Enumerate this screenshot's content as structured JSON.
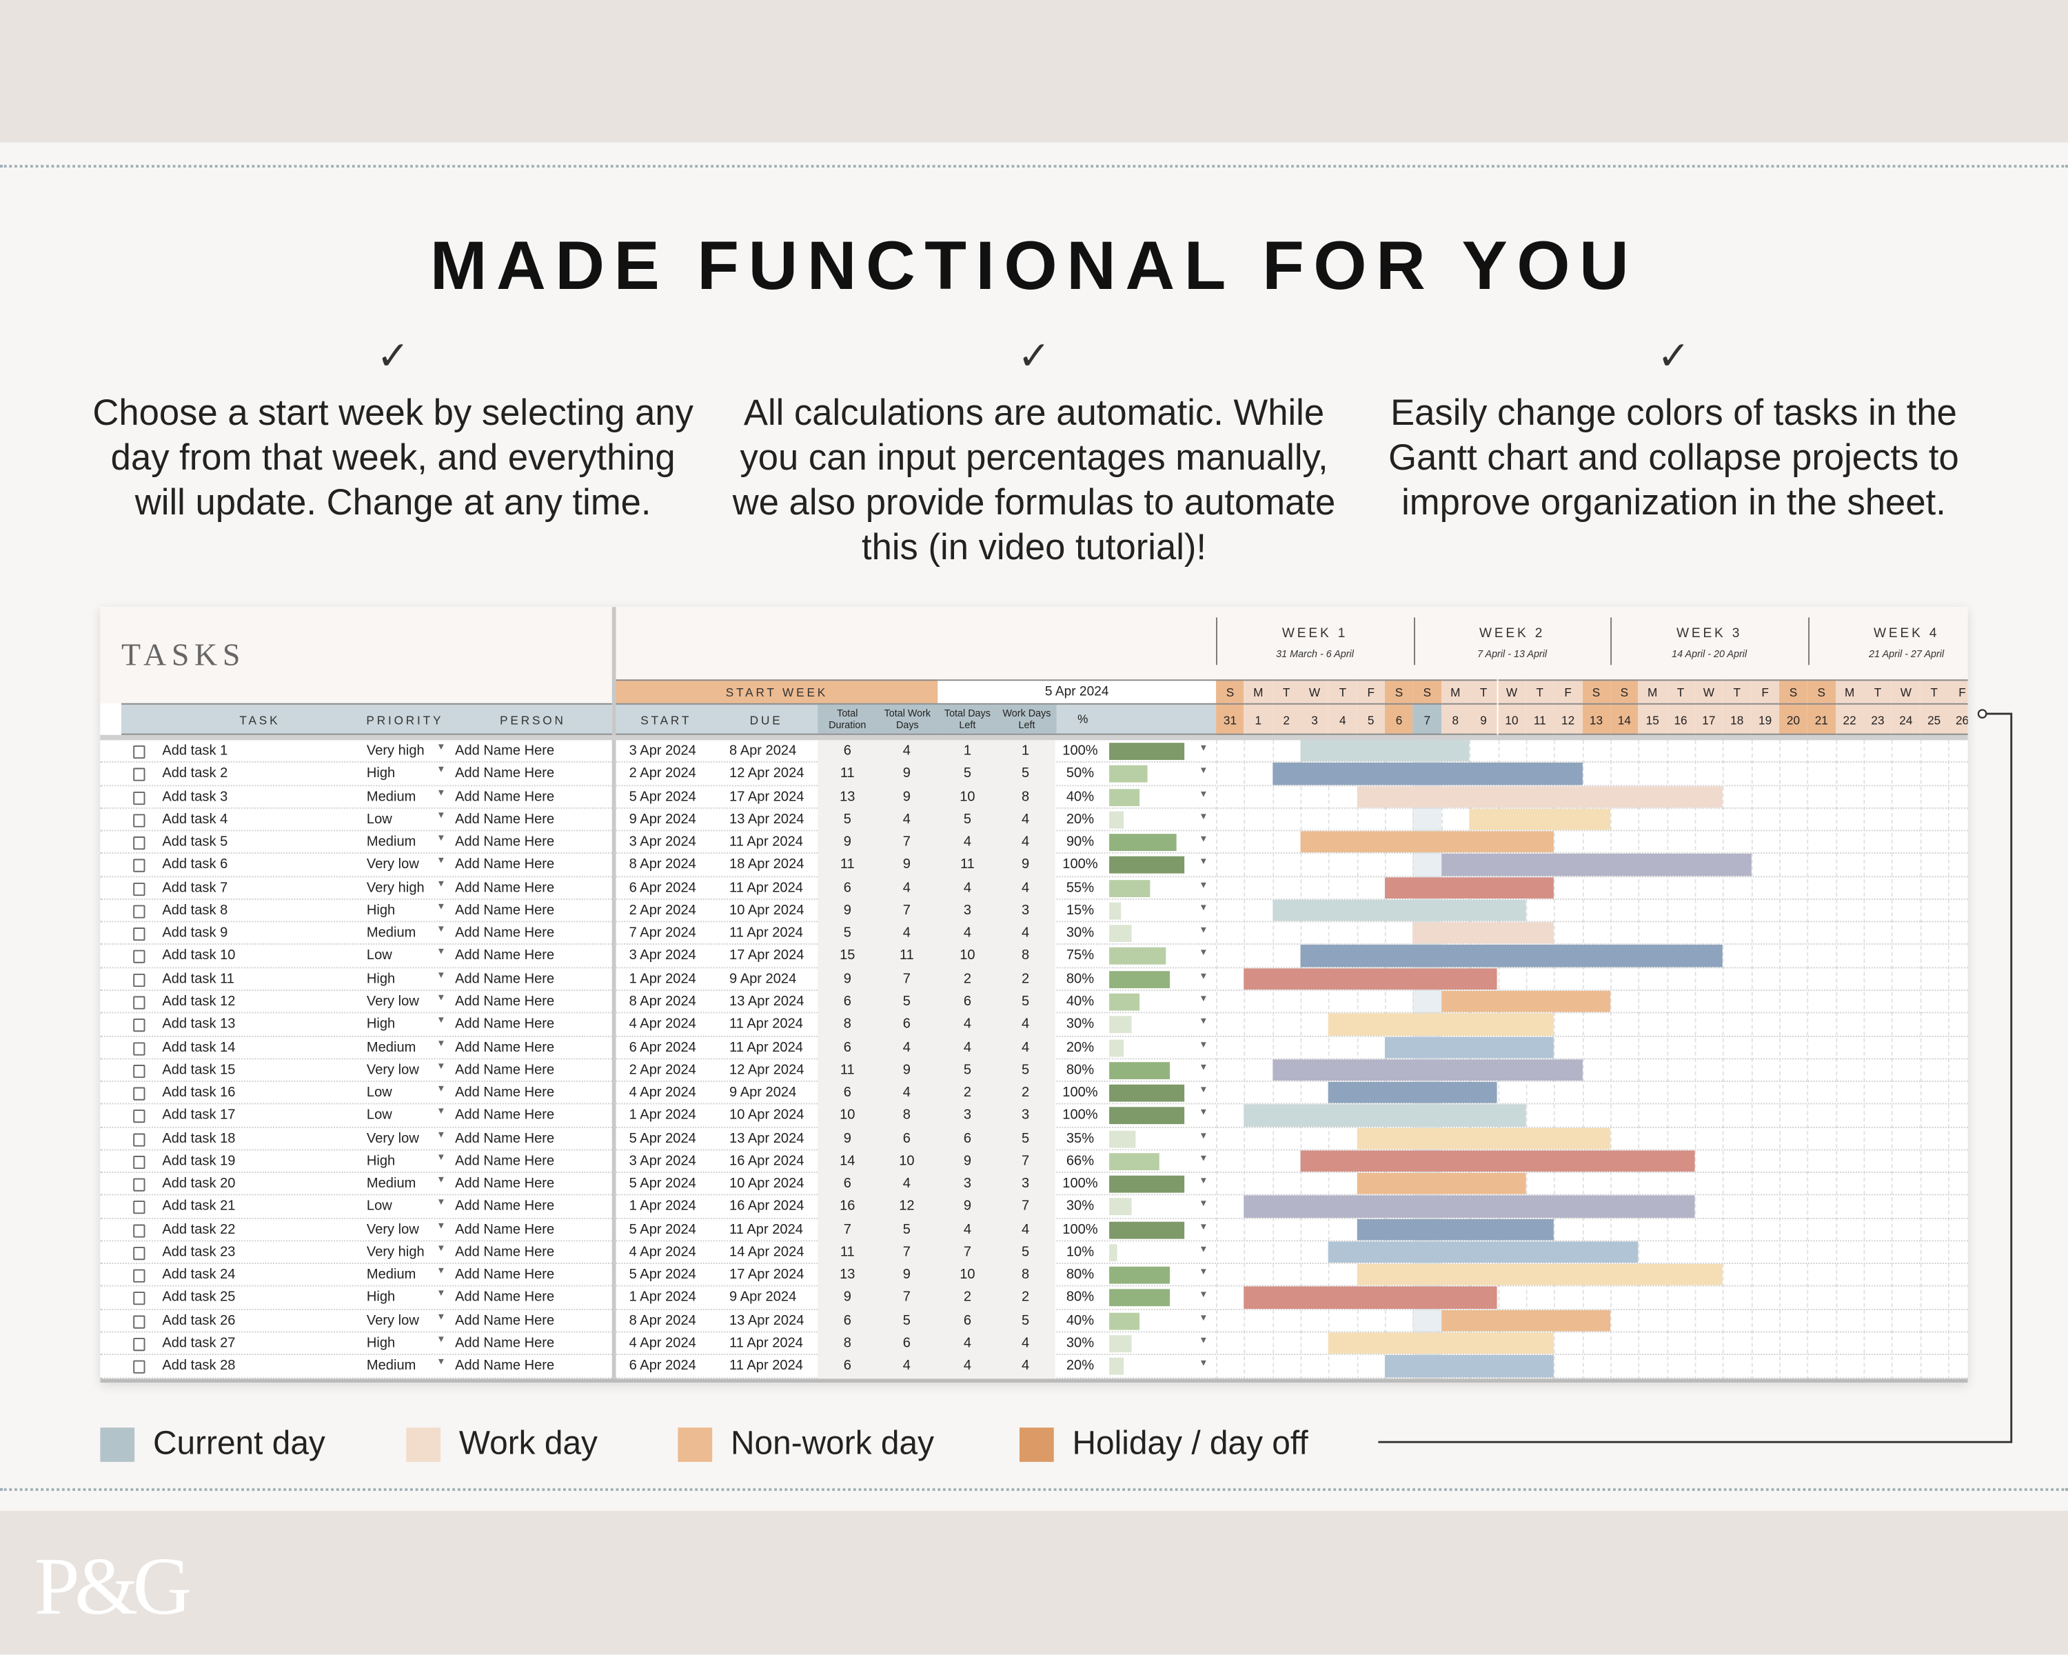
{
  "headline": "MADE FUNCTIONAL FOR YOU",
  "features": [
    {
      "icon": "checkmark-icon",
      "check": "✓",
      "text": "Choose a start week by selecting any day from that week, and everything will update. Change at any time."
    },
    {
      "icon": "checkmark-icon",
      "check": "✓",
      "text": "All calculations are automatic. While you can input percentages manually, we also provide formulas to automate this (in video tutorial)!"
    },
    {
      "icon": "checkmark-icon",
      "check": "✓",
      "text": "Easily change colors of tasks in the Gantt chart and collapse projects to improve organization in the sheet."
    }
  ],
  "sheet": {
    "title": "TASKS",
    "start_week_label": "START WEEK",
    "start_week_value": "5 Apr 2024",
    "columns": {
      "task": "TASK",
      "priority": "PRIORITY",
      "person": "PERSON",
      "start": "START",
      "due": "DUE",
      "total_duration": "Total Duration",
      "total_work_days": "Total Work Days",
      "total_days_left": "Total Days Left",
      "work_days_left": "Work Days Left",
      "percent": "%"
    },
    "weeks": [
      {
        "label": "WEEK 1",
        "range": "31 March - 6 April"
      },
      {
        "label": "WEEK 2",
        "range": "7 April - 13 April"
      },
      {
        "label": "WEEK 3",
        "range": "14 April - 20 April"
      },
      {
        "label": "WEEK 4",
        "range": "21 April - 27 April"
      }
    ],
    "day_letters": [
      "S",
      "M",
      "T",
      "W",
      "T",
      "F",
      "S",
      "S",
      "M",
      "T",
      "W",
      "T",
      "F",
      "S",
      "S",
      "M",
      "T",
      "W",
      "T",
      "F",
      "S",
      "S",
      "M",
      "T",
      "W",
      "T",
      "F"
    ],
    "day_numbers": [
      "31",
      "1",
      "2",
      "3",
      "4",
      "5",
      "6",
      "7",
      "8",
      "9",
      "10",
      "11",
      "12",
      "13",
      "14",
      "15",
      "16",
      "17",
      "18",
      "19",
      "20",
      "21",
      "22",
      "23",
      "24",
      "25",
      "26"
    ],
    "current_day": "7",
    "colors": {
      "current_day": "#b3c3ca",
      "work_day": "#f2dccb",
      "non_work_day": "#edbb91",
      "holiday": "#dc9a66",
      "header_blue": "#cbd7dc",
      "header_blue_dark": "#b2c2c8"
    },
    "tasks": [
      {
        "name": "Add task 1",
        "priority": "Very high",
        "person": "Add Name Here",
        "start": "3 Apr 2024",
        "due": "8 Apr 2024",
        "dur": "6",
        "wd": "4",
        "dl": "1",
        "wdl": "1",
        "pct": "100%",
        "color": "#c9d8d8"
      },
      {
        "name": "Add task 2",
        "priority": "High",
        "person": "Add Name Here",
        "start": "2 Apr 2024",
        "due": "12 Apr 2024",
        "dur": "11",
        "wd": "9",
        "dl": "5",
        "wdl": "5",
        "pct": "50%",
        "color": "#8ea3bd"
      },
      {
        "name": "Add task 3",
        "priority": "Medium",
        "person": "Add Name Here",
        "start": "5 Apr 2024",
        "due": "17 Apr 2024",
        "dur": "13",
        "wd": "9",
        "dl": "10",
        "wdl": "8",
        "pct": "40%",
        "color": "#efdacd"
      },
      {
        "name": "Add task 4",
        "priority": "Low",
        "person": "Add Name Here",
        "start": "9 Apr 2024",
        "due": "13 Apr 2024",
        "dur": "5",
        "wd": "4",
        "dl": "5",
        "wdl": "4",
        "pct": "20%",
        "color": "#f5deb5"
      },
      {
        "name": "Add task 5",
        "priority": "Medium",
        "person": "Add Name Here",
        "start": "3 Apr 2024",
        "due": "11 Apr 2024",
        "dur": "9",
        "wd": "7",
        "dl": "4",
        "wdl": "4",
        "pct": "90%",
        "color": "#ecbb8f"
      },
      {
        "name": "Add task 6",
        "priority": "Very low",
        "person": "Add Name Here",
        "start": "8 Apr 2024",
        "due": "18 Apr 2024",
        "dur": "11",
        "wd": "9",
        "dl": "11",
        "wdl": "9",
        "pct": "100%",
        "color": "#b4b4c8"
      },
      {
        "name": "Add task 7",
        "priority": "Very high",
        "person": "Add Name Here",
        "start": "6 Apr 2024",
        "due": "11 Apr 2024",
        "dur": "6",
        "wd": "4",
        "dl": "4",
        "wdl": "4",
        "pct": "55%",
        "color": "#d58f85"
      },
      {
        "name": "Add task 8",
        "priority": "High",
        "person": "Add Name Here",
        "start": "2 Apr 2024",
        "due": "10 Apr 2024",
        "dur": "9",
        "wd": "7",
        "dl": "3",
        "wdl": "3",
        "pct": "15%",
        "color": "#c9d8d8"
      },
      {
        "name": "Add task 9",
        "priority": "Medium",
        "person": "Add Name Here",
        "start": "7 Apr 2024",
        "due": "11 Apr 2024",
        "dur": "5",
        "wd": "4",
        "dl": "4",
        "wdl": "4",
        "pct": "30%",
        "color": "#efdacd"
      },
      {
        "name": "Add task 10",
        "priority": "Low",
        "person": "Add Name Here",
        "start": "3 Apr 2024",
        "due": "17 Apr 2024",
        "dur": "15",
        "wd": "11",
        "dl": "10",
        "wdl": "8",
        "pct": "75%",
        "color": "#8ea3bd"
      },
      {
        "name": "Add task 11",
        "priority": "High",
        "person": "Add Name Here",
        "start": "1 Apr 2024",
        "due": "9 Apr 2024",
        "dur": "9",
        "wd": "7",
        "dl": "2",
        "wdl": "2",
        "pct": "80%",
        "color": "#d58f85"
      },
      {
        "name": "Add task 12",
        "priority": "Very low",
        "person": "Add Name Here",
        "start": "8 Apr 2024",
        "due": "13 Apr 2024",
        "dur": "6",
        "wd": "5",
        "dl": "6",
        "wdl": "5",
        "pct": "40%",
        "color": "#ecbb8f"
      },
      {
        "name": "Add task 13",
        "priority": "High",
        "person": "Add Name Here",
        "start": "4 Apr 2024",
        "due": "11 Apr 2024",
        "dur": "8",
        "wd": "6",
        "dl": "4",
        "wdl": "4",
        "pct": "30%",
        "color": "#f5deb5"
      },
      {
        "name": "Add task 14",
        "priority": "Medium",
        "person": "Add Name Here",
        "start": "6 Apr 2024",
        "due": "11 Apr 2024",
        "dur": "6",
        "wd": "4",
        "dl": "4",
        "wdl": "4",
        "pct": "20%",
        "color": "#b1c4d6"
      },
      {
        "name": "Add task 15",
        "priority": "Very low",
        "person": "Add Name Here",
        "start": "2 Apr 2024",
        "due": "12 Apr 2024",
        "dur": "11",
        "wd": "9",
        "dl": "5",
        "wdl": "5",
        "pct": "80%",
        "color": "#b4b4c8"
      },
      {
        "name": "Add task 16",
        "priority": "Low",
        "person": "Add Name Here",
        "start": "4 Apr 2024",
        "due": "9 Apr 2024",
        "dur": "6",
        "wd": "4",
        "dl": "2",
        "wdl": "2",
        "pct": "100%",
        "color": "#8ea3bd"
      },
      {
        "name": "Add task 17",
        "priority": "Low",
        "person": "Add Name Here",
        "start": "1 Apr 2024",
        "due": "10 Apr 2024",
        "dur": "10",
        "wd": "8",
        "dl": "3",
        "wdl": "3",
        "pct": "100%",
        "color": "#c9d8d8"
      },
      {
        "name": "Add task 18",
        "priority": "Very low",
        "person": "Add Name Here",
        "start": "5 Apr 2024",
        "due": "13 Apr 2024",
        "dur": "9",
        "wd": "6",
        "dl": "6",
        "wdl": "5",
        "pct": "35%",
        "color": "#f5deb5"
      },
      {
        "name": "Add task 19",
        "priority": "High",
        "person": "Add Name Here",
        "start": "3 Apr 2024",
        "due": "16 Apr 2024",
        "dur": "14",
        "wd": "10",
        "dl": "9",
        "wdl": "7",
        "pct": "66%",
        "color": "#d58f85"
      },
      {
        "name": "Add task 20",
        "priority": "Medium",
        "person": "Add Name Here",
        "start": "5 Apr 2024",
        "due": "10 Apr 2024",
        "dur": "6",
        "wd": "4",
        "dl": "3",
        "wdl": "3",
        "pct": "100%",
        "color": "#ecbb8f"
      },
      {
        "name": "Add task 21",
        "priority": "Low",
        "person": "Add Name Here",
        "start": "1 Apr 2024",
        "due": "16 Apr 2024",
        "dur": "16",
        "wd": "12",
        "dl": "9",
        "wdl": "7",
        "pct": "30%",
        "color": "#b4b4c8"
      },
      {
        "name": "Add task 22",
        "priority": "Very low",
        "person": "Add Name Here",
        "start": "5 Apr 2024",
        "due": "11 Apr 2024",
        "dur": "7",
        "wd": "5",
        "dl": "4",
        "wdl": "4",
        "pct": "100%",
        "color": "#8ea3bd"
      },
      {
        "name": "Add task 23",
        "priority": "Very high",
        "person": "Add Name Here",
        "start": "4 Apr 2024",
        "due": "14 Apr 2024",
        "dur": "11",
        "wd": "7",
        "dl": "7",
        "wdl": "5",
        "pct": "10%",
        "color": "#b1c4d6"
      },
      {
        "name": "Add task 24",
        "priority": "Medium",
        "person": "Add Name Here",
        "start": "5 Apr 2024",
        "due": "17 Apr 2024",
        "dur": "13",
        "wd": "9",
        "dl": "10",
        "wdl": "8",
        "pct": "80%",
        "color": "#f5deb5"
      },
      {
        "name": "Add task 25",
        "priority": "High",
        "person": "Add Name Here",
        "start": "1 Apr 2024",
        "due": "9 Apr 2024",
        "dur": "9",
        "wd": "7",
        "dl": "2",
        "wdl": "2",
        "pct": "80%",
        "color": "#d58f85"
      },
      {
        "name": "Add task 26",
        "priority": "Very low",
        "person": "Add Name Here",
        "start": "8 Apr 2024",
        "due": "13 Apr 2024",
        "dur": "6",
        "wd": "5",
        "dl": "6",
        "wdl": "5",
        "pct": "40%",
        "color": "#ecbb8f"
      },
      {
        "name": "Add task 27",
        "priority": "High",
        "person": "Add Name Here",
        "start": "4 Apr 2024",
        "due": "11 Apr 2024",
        "dur": "8",
        "wd": "6",
        "dl": "4",
        "wdl": "4",
        "pct": "30%",
        "color": "#f5deb5"
      },
      {
        "name": "Add task 28",
        "priority": "Medium",
        "person": "Add Name Here",
        "start": "6 Apr 2024",
        "due": "11 Apr 2024",
        "dur": "6",
        "wd": "4",
        "dl": "4",
        "wdl": "4",
        "pct": "20%",
        "color": "#b1c4d6"
      }
    ]
  },
  "legend": [
    {
      "label": "Current day",
      "color": "#b3c3ca"
    },
    {
      "label": "Work day",
      "color": "#f2dccb"
    },
    {
      "label": "Non-work day",
      "color": "#edbb91"
    },
    {
      "label": "Holiday / day off",
      "color": "#dc9a66"
    }
  ],
  "brand": {
    "logo": "P&G"
  }
}
